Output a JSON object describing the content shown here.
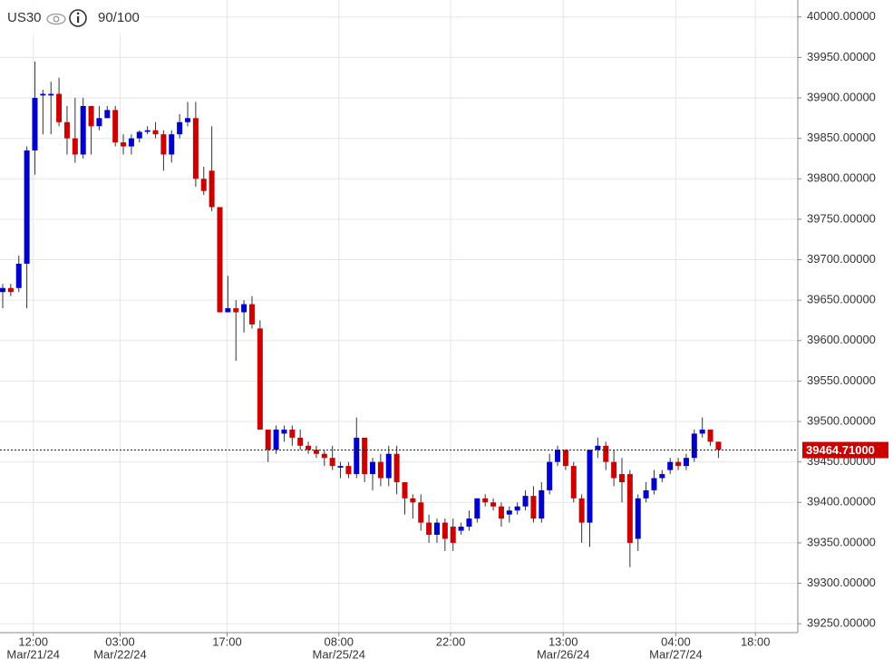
{
  "chart_data": {
    "type": "candlestick",
    "symbol": "US30",
    "rating": "90/100",
    "up_color": "#0000cc",
    "down_color": "#cc0000",
    "open": [
      39660,
      39665,
      39665,
      39695,
      39835,
      39903,
      39903,
      39905,
      39870,
      39850,
      39830,
      39890,
      39865,
      39875,
      39885,
      39845,
      39840,
      39850,
      39858,
      39860,
      39855,
      39830,
      39855,
      39870,
      39875,
      39800,
      39810,
      39765,
      39635,
      39640,
      39635,
      39645,
      39615,
      39490,
      39465,
      39485,
      39490,
      39480,
      39470,
      39465,
      39460,
      39455,
      39443,
      39445,
      39435,
      39480,
      39435,
      39450,
      39430,
      39460,
      39425,
      39405,
      39400,
      39375,
      39360,
      39375,
      39370,
      39365,
      39370,
      39380,
      39405,
      39400,
      39395,
      39385,
      39390,
      39395,
      39408,
      39380,
      39415,
      39450,
      39465,
      39445,
      39405,
      39375,
      39465,
      39470,
      39450,
      39435,
      39435,
      39355,
      39405,
      39415,
      39430,
      39440,
      39450,
      39445,
      39455,
      39485,
      39490,
      39475
    ],
    "high": [
      39670,
      39670,
      39705,
      39840,
      39945,
      39910,
      39920,
      39925,
      39890,
      39900,
      39900,
      39890,
      39890,
      39890,
      39890,
      39855,
      39855,
      39860,
      39865,
      39870,
      39860,
      39860,
      39880,
      39895,
      39895,
      39815,
      39865,
      39765,
      39680,
      39650,
      39650,
      39655,
      39625,
      39490,
      39495,
      39495,
      39495,
      39490,
      39475,
      39470,
      39465,
      39470,
      39450,
      39450,
      39505,
      39480,
      39455,
      39460,
      39470,
      39470,
      39425,
      39410,
      39410,
      39385,
      39380,
      39380,
      39380,
      39375,
      39390,
      39405,
      39410,
      39405,
      39400,
      39395,
      39400,
      39415,
      39420,
      39425,
      39460,
      39470,
      39465,
      39450,
      39410,
      39465,
      39480,
      39475,
      39465,
      39455,
      39440,
      39410,
      39425,
      39440,
      39440,
      39455,
      39455,
      39460,
      39490,
      39505,
      39490,
      39475
    ],
    "low": [
      39640,
      39655,
      39660,
      39640,
      39805,
      39855,
      39855,
      39865,
      39830,
      39820,
      39825,
      39830,
      39860,
      39875,
      39840,
      39830,
      39830,
      39845,
      39855,
      39850,
      39810,
      39820,
      39850,
      39865,
      39790,
      39780,
      39760,
      39635,
      39635,
      39575,
      39610,
      39615,
      39490,
      39450,
      39460,
      39475,
      39470,
      39465,
      39460,
      39455,
      39445,
      39440,
      39430,
      39430,
      39430,
      39425,
      39415,
      39420,
      39420,
      39410,
      39385,
      39380,
      39365,
      39350,
      39350,
      39340,
      39340,
      39360,
      39365,
      39375,
      39395,
      39390,
      39370,
      39375,
      39385,
      39390,
      39375,
      39375,
      39410,
      39445,
      39440,
      39400,
      39350,
      39345,
      39455,
      39440,
      39420,
      39400,
      39320,
      39340,
      39400,
      39410,
      39425,
      39435,
      39440,
      39440,
      39450,
      39480,
      39470,
      39455
    ],
    "close": [
      39665,
      39660,
      39695,
      39835,
      39900,
      39905,
      39905,
      39870,
      39850,
      39830,
      39890,
      39865,
      39875,
      39885,
      39845,
      39840,
      39850,
      39858,
      39860,
      39855,
      39830,
      39855,
      39870,
      39875,
      39800,
      39785,
      39765,
      39635,
      39640,
      39635,
      39645,
      39620,
      39490,
      39465,
      39490,
      39490,
      39480,
      39470,
      39465,
      39460,
      39455,
      39445,
      39445,
      39435,
      39480,
      39435,
      39450,
      39430,
      39460,
      39425,
      39405,
      39400,
      39375,
      39360,
      39375,
      39355,
      39350,
      39370,
      39380,
      39405,
      39400,
      39395,
      39380,
      39390,
      39395,
      39408,
      39380,
      39415,
      39450,
      39465,
      39445,
      39405,
      39375,
      39465,
      39470,
      39450,
      39430,
      39425,
      39350,
      39405,
      39415,
      39430,
      39435,
      39450,
      39445,
      39455,
      39485,
      39490,
      39475,
      39465
    ],
    "ylim": [
      39239,
      40021
    ],
    "yticks": [
      {
        "value": 39250,
        "label": "39250.00000"
      },
      {
        "value": 39300,
        "label": "39300.00000"
      },
      {
        "value": 39350,
        "label": "39350.00000"
      },
      {
        "value": 39400,
        "label": "39400.00000"
      },
      {
        "value": 39450,
        "label": "39450.00000"
      },
      {
        "value": 39500,
        "label": "39500.00000"
      },
      {
        "value": 39550,
        "label": "39550.00000"
      },
      {
        "value": 39600,
        "label": "39600.00000"
      },
      {
        "value": 39650,
        "label": "39650.00000"
      },
      {
        "value": 39700,
        "label": "39700.00000"
      },
      {
        "value": 39750,
        "label": "39750.00000"
      },
      {
        "value": 39800,
        "label": "39800.00000"
      },
      {
        "value": 39850,
        "label": "39850.00000"
      },
      {
        "value": 39900,
        "label": "39900.00000"
      },
      {
        "value": 39950,
        "label": "39950.00000"
      },
      {
        "value": 40000,
        "label": "40000.00000"
      }
    ],
    "xticks": [
      {
        "value": 3.8,
        "label": "12:00",
        "date": "Mar/21/24"
      },
      {
        "value": 14.6,
        "label": "03:00",
        "date": "Mar/22/24"
      },
      {
        "value": 27.9,
        "label": "17:00"
      },
      {
        "value": 41.8,
        "label": "08:00",
        "date": "Mar/25/24"
      },
      {
        "value": 55.7,
        "label": "22:00"
      },
      {
        "value": 69.7,
        "label": "13:00",
        "date": "Mar/26/24"
      },
      {
        "value": 83.7,
        "label": "04:00",
        "date": "Mar/27/24"
      },
      {
        "value": 93.6,
        "label": "18:00"
      }
    ],
    "last_price": {
      "value": 39464.71,
      "label": "39464.71000"
    },
    "grid": true
  }
}
